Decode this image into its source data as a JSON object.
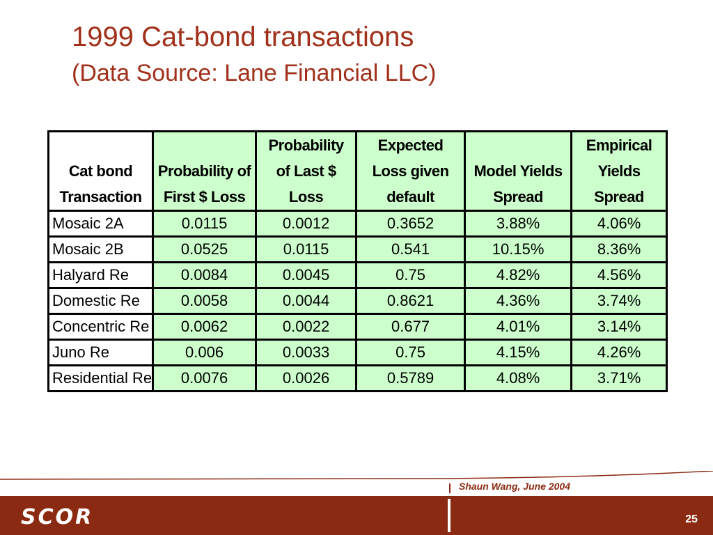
{
  "slide": {
    "title": "1999 Cat-bond transactions",
    "subtitle": "(Data Source: Lane Financial LLC)",
    "author": "Shaun Wang, June 2004",
    "page_number": "25",
    "logo_text": "SCOR"
  },
  "colors": {
    "title": "#a0301a",
    "accent_bar": "#8b2a12",
    "cell_highlight": "#ccffcc"
  },
  "table": {
    "headers": [
      [
        "Cat bond",
        "Transaction"
      ],
      [
        "Probability of",
        "First $ Loss"
      ],
      [
        "Probability",
        "of Last $",
        "Loss"
      ],
      [
        "Expected",
        "Loss given",
        "default"
      ],
      [
        "Model Yields",
        "Spread"
      ],
      [
        "Empirical",
        "Yields",
        "Spread"
      ]
    ],
    "rows": [
      [
        "Mosaic 2A",
        "0.0115",
        "0.0012",
        "0.3652",
        "3.88%",
        "4.06%"
      ],
      [
        "Mosaic 2B",
        "0.0525",
        "0.0115",
        "0.541",
        "10.15%",
        "8.36%"
      ],
      [
        "Halyard Re",
        "0.0084",
        "0.0045",
        "0.75",
        "4.82%",
        "4.56%"
      ],
      [
        "Domestic Re",
        "0.0058",
        "0.0044",
        "0.8621",
        "4.36%",
        "3.74%"
      ],
      [
        "Concentric Re",
        "0.0062",
        "0.0022",
        "0.677",
        "4.01%",
        "3.14%"
      ],
      [
        "Juno Re",
        "0.006",
        "0.0033",
        "0.75",
        "4.15%",
        "4.26%"
      ],
      [
        "Residential Re",
        "0.0076",
        "0.0026",
        "0.5789",
        "4.08%",
        "3.71%"
      ]
    ]
  }
}
